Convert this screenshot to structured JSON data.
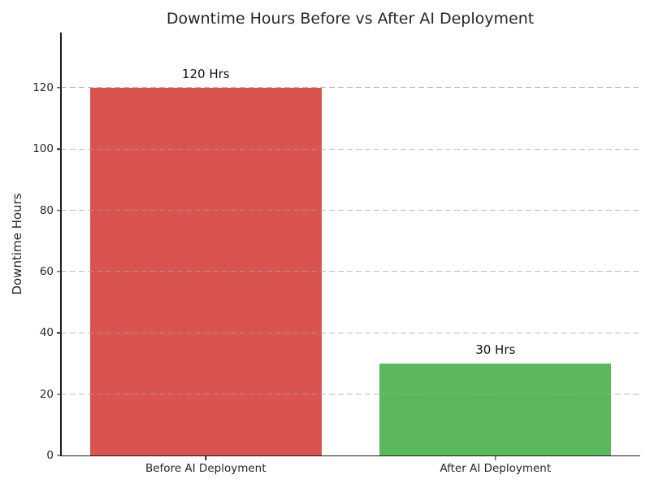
{
  "chart_data": {
    "type": "bar",
    "title": "Downtime Hours Before vs After AI Deployment",
    "xlabel": "",
    "ylabel": "Downtime Hours",
    "categories": [
      "Before AI Deployment",
      "After AI Deployment"
    ],
    "values": [
      120,
      30
    ],
    "value_labels": [
      "120 Hrs",
      "30 Hrs"
    ],
    "bar_colors": [
      "#d9534f",
      "#5cb85c"
    ],
    "yticks": [
      0,
      20,
      40,
      60,
      80,
      100,
      120
    ],
    "ylim": [
      0,
      138
    ],
    "grid": "horizontal dashed gridlines drawn over bars",
    "legend": "none",
    "bar_width_fraction": 0.8
  }
}
